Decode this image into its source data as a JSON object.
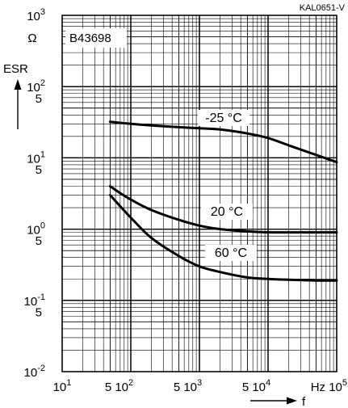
{
  "chart_data": {
    "type": "line",
    "title": "",
    "code": "KAL0651-V",
    "part_label": "B43698",
    "y_label": "ESR",
    "y_unit": "Ω",
    "x_label": "f",
    "x_unit": "Hz",
    "x_scale": "log",
    "y_scale": "log",
    "xlim": [
      10,
      100000
    ],
    "ylim": [
      0.01,
      1000
    ],
    "grid": true,
    "x_ticks": [
      {
        "base": "10",
        "exp": "1"
      },
      {
        "base": "5 10",
        "exp": "2"
      },
      {
        "base": "5 10",
        "exp": "3"
      },
      {
        "base": "5 10",
        "exp": "4"
      },
      {
        "base": "Hz 10",
        "exp": "5"
      }
    ],
    "y_ticks": [
      {
        "base": "10",
        "exp": "3"
      },
      {
        "base": "10",
        "exp": "2"
      },
      {
        "base": "5",
        "exp": ""
      },
      {
        "base": "10",
        "exp": "1"
      },
      {
        "base": "5",
        "exp": ""
      },
      {
        "base": "10",
        "exp": "0"
      },
      {
        "base": "5",
        "exp": ""
      },
      {
        "base": "10",
        "exp": "-1"
      },
      {
        "base": "5",
        "exp": ""
      },
      {
        "base": "10",
        "exp": "-2"
      }
    ],
    "series": [
      {
        "name": "-25 °C",
        "x": [
          50,
          100,
          200,
          500,
          1000,
          2000,
          5000,
          10000,
          20000,
          50000,
          100000
        ],
        "y": [
          32,
          30,
          28.5,
          27,
          26,
          25,
          22,
          19,
          15,
          11,
          8.7
        ]
      },
      {
        "name": "20 °C",
        "x": [
          50,
          70,
          100,
          200,
          500,
          1000,
          2000,
          5000,
          10000,
          20000,
          50000,
          100000
        ],
        "y": [
          4.0,
          3.2,
          2.6,
          1.85,
          1.35,
          1.12,
          1.0,
          0.93,
          0.9,
          0.9,
          0.9,
          0.9
        ]
      },
      {
        "name": "60 °C",
        "x": [
          50,
          70,
          100,
          200,
          500,
          1000,
          2000,
          5000,
          10000,
          20000,
          50000,
          100000
        ],
        "y": [
          3.0,
          2.1,
          1.45,
          0.75,
          0.42,
          0.3,
          0.25,
          0.21,
          0.2,
          0.195,
          0.19,
          0.19
        ]
      }
    ]
  }
}
